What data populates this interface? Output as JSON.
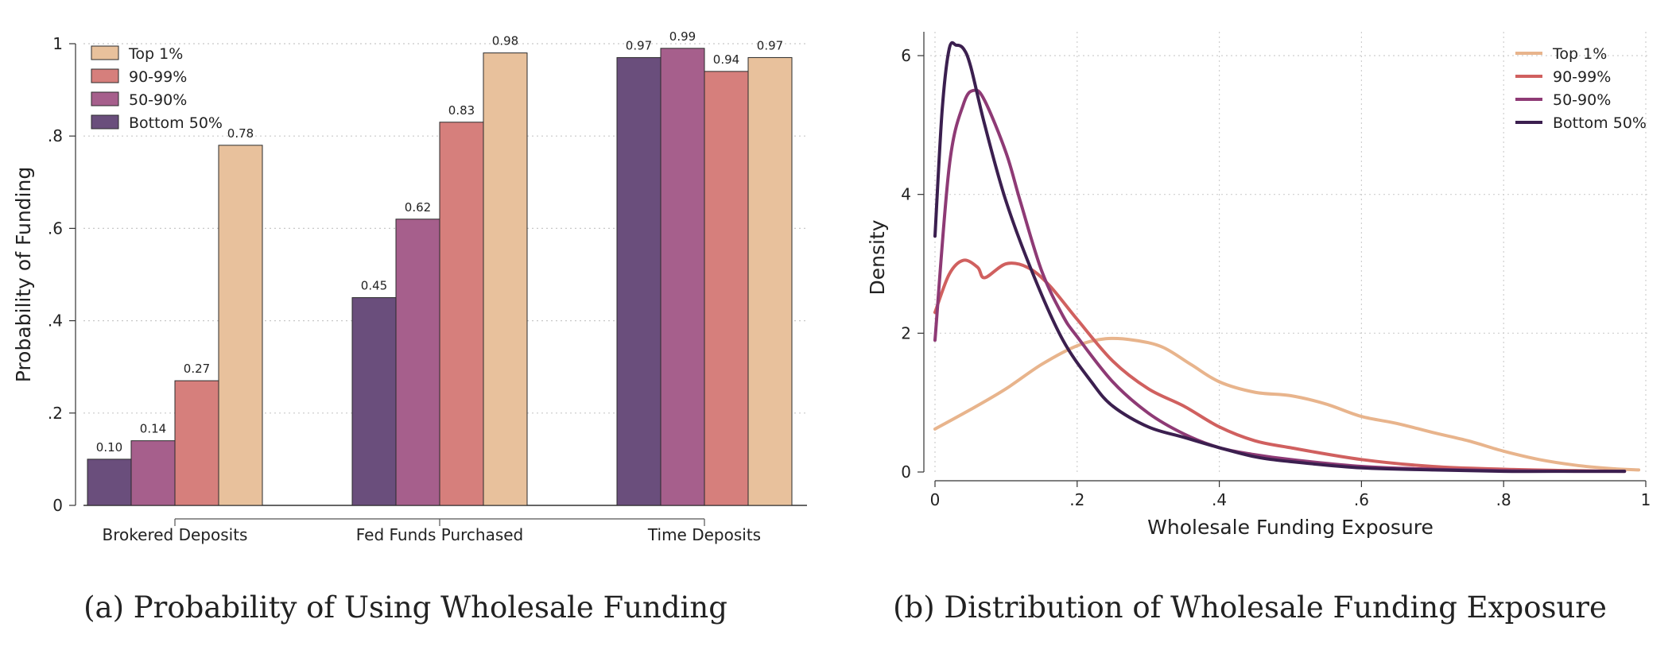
{
  "chart_data": [
    {
      "type": "bar",
      "caption": "(a) Probability of Using Wholesale Funding",
      "ylabel": "Probability of Funding",
      "xlabel": "",
      "ylim": [
        0,
        1
      ],
      "yticks": [
        0,
        0.2,
        0.4,
        0.6,
        0.8,
        1
      ],
      "ytick_labels": [
        "0",
        ".2",
        ".4",
        ".6",
        ".8",
        "1"
      ],
      "grid": true,
      "legend_position": "top-left",
      "categories": [
        "Brokered Deposits",
        "Fed Funds Purchased",
        "Time Deposits"
      ],
      "series": [
        {
          "name": "Bottom 50%",
          "color": "#6a4e7c",
          "values": [
            0.1,
            0.45,
            0.97
          ],
          "labels": [
            "0.10",
            "0.45",
            "0.97"
          ]
        },
        {
          "name": "50-90%",
          "color": "#a65f8c",
          "values": [
            0.14,
            0.62,
            0.99
          ],
          "labels": [
            "0.14",
            "0.62",
            "0.99"
          ]
        },
        {
          "name": "90-99%",
          "color": "#d67f7c",
          "values": [
            0.27,
            0.83,
            0.94
          ],
          "labels": [
            "0.27",
            "0.83",
            "0.94"
          ]
        },
        {
          "name": "Top 1%",
          "color": "#e8c19c",
          "values": [
            0.78,
            0.98,
            0.97
          ],
          "labels": [
            "0.78",
            "0.98",
            "0.97"
          ]
        }
      ],
      "legend_order": [
        "Top 1%",
        "90-99%",
        "50-90%",
        "Bottom 50%"
      ]
    },
    {
      "type": "line",
      "caption": "(b) Distribution of Wholesale Funding Exposure",
      "xlabel": "Wholesale Funding Exposure",
      "ylabel": "Density",
      "xlim": [
        0,
        1
      ],
      "ylim": [
        0,
        6.2
      ],
      "xticks": [
        0,
        0.2,
        0.4,
        0.6,
        0.8,
        1
      ],
      "xtick_labels": [
        "0",
        ".2",
        ".4",
        ".6",
        ".8",
        "1"
      ],
      "yticks": [
        0,
        2,
        4,
        6
      ],
      "ytick_labels": [
        "0",
        "2",
        "4",
        "6"
      ],
      "grid": true,
      "legend_position": "top-right",
      "series": [
        {
          "name": "Top 1%",
          "color": "#e8b48c",
          "x": [
            0,
            0.05,
            0.1,
            0.15,
            0.2,
            0.24,
            0.28,
            0.32,
            0.36,
            0.4,
            0.45,
            0.5,
            0.55,
            0.6,
            0.65,
            0.7,
            0.75,
            0.8,
            0.85,
            0.9,
            0.95,
            0.99
          ],
          "y": [
            0.62,
            0.9,
            1.2,
            1.55,
            1.82,
            1.92,
            1.9,
            1.8,
            1.55,
            1.3,
            1.15,
            1.1,
            0.98,
            0.8,
            0.7,
            0.57,
            0.45,
            0.3,
            0.18,
            0.1,
            0.05,
            0.03
          ]
        },
        {
          "name": "90-99%",
          "color": "#d0605f",
          "x": [
            0,
            0.02,
            0.04,
            0.06,
            0.07,
            0.1,
            0.13,
            0.16,
            0.2,
            0.25,
            0.3,
            0.35,
            0.4,
            0.45,
            0.5,
            0.6,
            0.7,
            0.8,
            0.9,
            0.97
          ],
          "y": [
            2.3,
            2.85,
            3.05,
            2.95,
            2.8,
            3.0,
            2.95,
            2.7,
            2.2,
            1.6,
            1.2,
            0.95,
            0.65,
            0.45,
            0.35,
            0.18,
            0.08,
            0.04,
            0.02,
            0.01
          ]
        },
        {
          "name": "50-90%",
          "color": "#8e3a75",
          "x": [
            0,
            0.02,
            0.04,
            0.055,
            0.07,
            0.1,
            0.12,
            0.15,
            0.18,
            0.2,
            0.25,
            0.3,
            0.35,
            0.4,
            0.45,
            0.5,
            0.6,
            0.7,
            0.8,
            0.9,
            0.97
          ],
          "y": [
            1.9,
            4.4,
            5.3,
            5.5,
            5.35,
            4.6,
            3.9,
            2.9,
            2.25,
            1.95,
            1.3,
            0.85,
            0.55,
            0.35,
            0.25,
            0.18,
            0.08,
            0.04,
            0.02,
            0.01,
            0.01
          ]
        },
        {
          "name": "Bottom 50%",
          "color": "#3b1f4f",
          "x": [
            0,
            0.01,
            0.02,
            0.03,
            0.04,
            0.05,
            0.07,
            0.1,
            0.14,
            0.18,
            0.22,
            0.25,
            0.3,
            0.35,
            0.4,
            0.45,
            0.5,
            0.6,
            0.7,
            0.8,
            0.9,
            0.97
          ],
          "y": [
            3.4,
            5.2,
            6.1,
            6.15,
            6.1,
            5.85,
            5.0,
            3.9,
            2.8,
            1.9,
            1.3,
            0.95,
            0.65,
            0.5,
            0.35,
            0.22,
            0.15,
            0.06,
            0.03,
            0.01,
            0.01,
            0.01
          ]
        }
      ]
    }
  ]
}
